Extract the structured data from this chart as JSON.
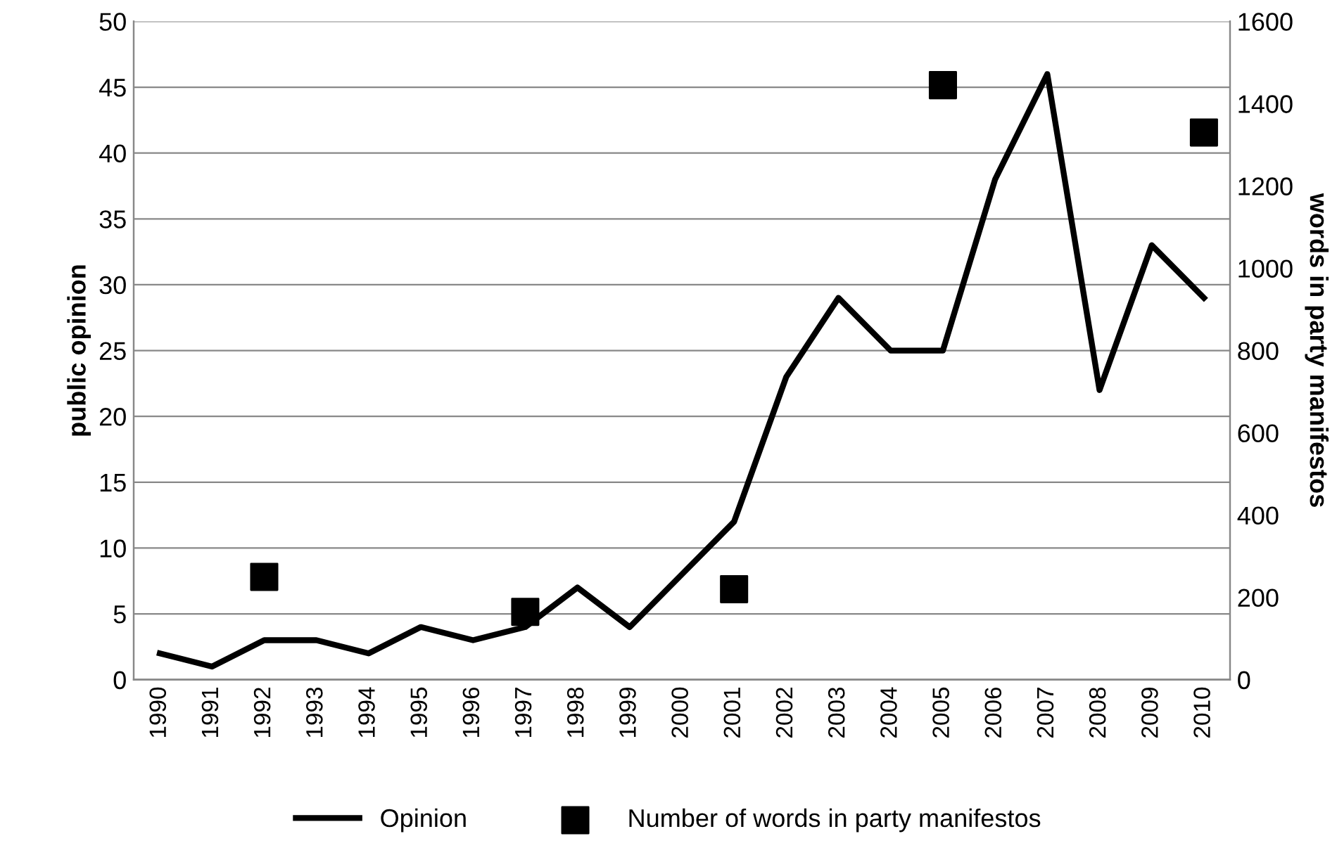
{
  "chart_data": {
    "type": "line",
    "ylabel": "public opinion",
    "y2label": "words in party manifestos",
    "categories": [
      "1990",
      "1991",
      "1992",
      "1993",
      "1994",
      "1995",
      "1996",
      "1997",
      "1998",
      "1999",
      "2000",
      "2001",
      "2002",
      "2003",
      "2004",
      "2005",
      "2006",
      "2007",
      "2008",
      "2009",
      "2010"
    ],
    "series": [
      {
        "name": "Opinion",
        "color": "#000000",
        "marker": "none",
        "line_style": "solid",
        "values": [
          2,
          1,
          3,
          3,
          2,
          4,
          3,
          4,
          7,
          4,
          8,
          12,
          23,
          29,
          25,
          25,
          38,
          46,
          22,
          33,
          29
        ]
      },
      {
        "name": "Number of words in party manifestos",
        "type": "scatter",
        "axis": "y2",
        "color": "#000000",
        "marker": "square",
        "values": [
          null,
          null,
          250,
          null,
          null,
          null,
          null,
          165,
          null,
          null,
          null,
          220,
          null,
          null,
          null,
          1445,
          null,
          null,
          null,
          null,
          1330
        ]
      }
    ],
    "ylim": [
      0,
      50
    ],
    "yticks": [
      0,
      5,
      10,
      15,
      20,
      25,
      30,
      35,
      40,
      45,
      50
    ],
    "y2lim": [
      0,
      1600
    ],
    "y2ticks": [
      0,
      200,
      400,
      600,
      800,
      1000,
      1200,
      1400,
      1600
    ],
    "grid": "y",
    "legend": "bottom"
  }
}
